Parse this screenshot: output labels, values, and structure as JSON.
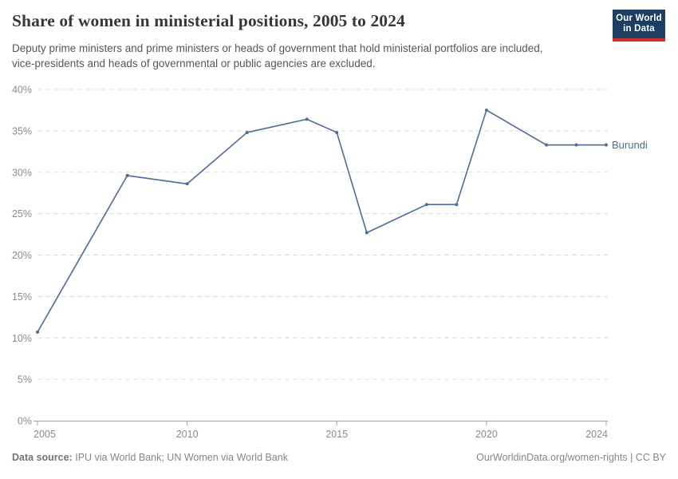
{
  "header": {
    "title": "Share of women in ministerial positions, 2005 to 2024",
    "subtitle": "Deputy prime ministers and prime ministers or heads of government that hold ministerial portfolios are included, vice-presidents and heads of governmental or public agencies are excluded.",
    "logo": {
      "line1": "Our World",
      "line2": "in Data",
      "bg_color": "#1d3d63",
      "accent_color": "#d42b2b"
    }
  },
  "chart_data": {
    "type": "line",
    "title": "Share of women in ministerial positions, 2005 to 2024",
    "x": [
      2005,
      2008,
      2010,
      2012,
      2014,
      2015,
      2016,
      2018,
      2019,
      2020,
      2022,
      2023,
      2024
    ],
    "series": [
      {
        "name": "Burundi",
        "color": "#4c6a9c",
        "values": [
          10.7,
          29.6,
          28.6,
          34.8,
          36.4,
          34.8,
          22.7,
          26.1,
          26.1,
          37.5,
          33.3,
          33.3,
          33.3
        ]
      }
    ],
    "xlim": [
      2005,
      2024
    ],
    "ylim": [
      0,
      40
    ],
    "xticks": [
      2005,
      2010,
      2015,
      2020,
      2024
    ],
    "yticks": [
      0,
      5,
      10,
      15,
      20,
      25,
      30,
      35,
      40
    ],
    "ytick_suffix": "%",
    "grid": "horizontal-dashed",
    "legend_position": "line-end-label",
    "colors": {
      "line": "#4c6a9c",
      "grid": "#dddddd",
      "axis": "#a5a5a5",
      "tick_label": "#8b8b8b"
    }
  },
  "footer": {
    "source_label": "Data source:",
    "source_text": "IPU via World Bank; UN Women via World Bank",
    "link_text": "OurWorldinData.org/women-rights | CC BY"
  }
}
